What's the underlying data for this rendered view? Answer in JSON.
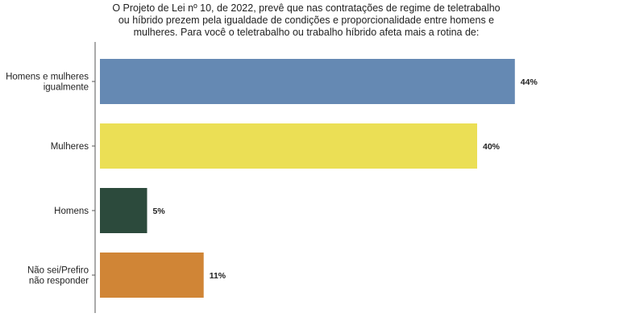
{
  "chart_data": {
    "type": "bar",
    "orientation": "horizontal",
    "title_lines": [
      "O Projeto de Lei nº 10, de 2022, prevê que nas contratações de regime de teletrabalho",
      "ou híbrido prezem pela igualdade de condições e proporcionalidade entre homens e",
      "mulheres. Para você o teletrabalho ou trabalho híbrido afeta mais a rotina de:"
    ],
    "categories": [
      [
        "Homens e mulheres",
        "igualmente"
      ],
      [
        "Mulheres"
      ],
      [
        "Homens"
      ],
      [
        "Não sei/Prefiro",
        "não responder"
      ]
    ],
    "values": [
      44,
      40,
      5,
      11
    ],
    "value_labels": [
      "44%",
      "40%",
      "5%",
      "11%"
    ],
    "colors": [
      "#6589b3",
      "#ebdf55",
      "#2c4a3c",
      "#d08536"
    ],
    "xlim": [
      0,
      50
    ],
    "grid": false,
    "legend": "none"
  }
}
